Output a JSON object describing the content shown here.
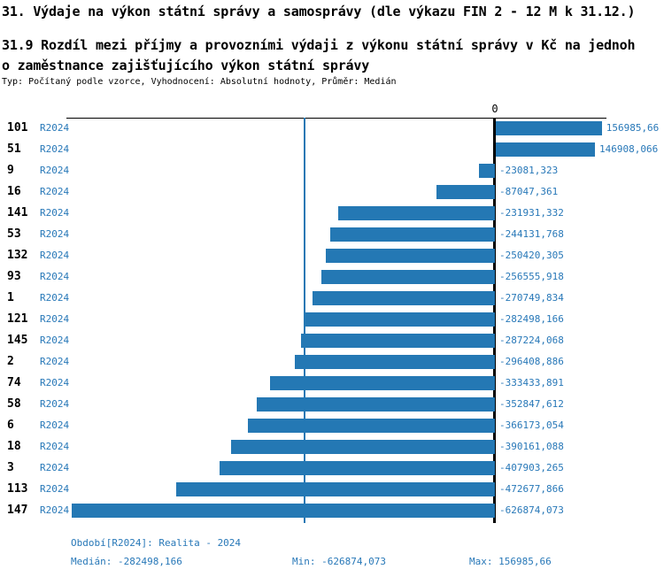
{
  "title": "31. Výdaje na výkon státní správy a samosprávy (dle výkazu FIN 2 - 12 M k 31.12.)",
  "subtitle_lines": [
    "31.9 Rozdíl mezi příjmy a provozními výdaji z výkonu státní správy v Kč na jednoh",
    "o zaměstnance zajišťujícího výkon státní správy"
  ],
  "meta_line": "Typ: Počítaný podle vzorce, Vyhodnocení: Absolutní hodnoty, Průměr: Medián",
  "axis": {
    "zero_label": "0"
  },
  "chart_data": {
    "type": "bar",
    "orientation": "horizontal",
    "title": "31.9 Rozdíl mezi příjmy a provozními výdaji z výkonu státní správy v Kč na jednoho zaměstnance zajišťujícího výkon státní správy",
    "xlim": [
      -637000,
      165000
    ],
    "grid": false,
    "legend": null,
    "median_value": -282498.166,
    "rows": [
      {
        "id": "101",
        "period": "R2024",
        "value": 156985.66,
        "display": "156985,66"
      },
      {
        "id": "51",
        "period": "R2024",
        "value": 146908.066,
        "display": "146908,066"
      },
      {
        "id": "9",
        "period": "R2024",
        "value": -23081.323,
        "display": "-23081,323"
      },
      {
        "id": "16",
        "period": "R2024",
        "value": -87047.361,
        "display": "-87047,361"
      },
      {
        "id": "141",
        "period": "R2024",
        "value": -231931.332,
        "display": "-231931,332"
      },
      {
        "id": "53",
        "period": "R2024",
        "value": -244131.768,
        "display": "-244131,768"
      },
      {
        "id": "132",
        "period": "R2024",
        "value": -250420.305,
        "display": "-250420,305"
      },
      {
        "id": "93",
        "period": "R2024",
        "value": -256555.918,
        "display": "-256555,918"
      },
      {
        "id": "1",
        "period": "R2024",
        "value": -270749.834,
        "display": "-270749,834"
      },
      {
        "id": "121",
        "period": "R2024",
        "value": -282498.166,
        "display": "-282498,166"
      },
      {
        "id": "145",
        "period": "R2024",
        "value": -287224.068,
        "display": "-287224,068"
      },
      {
        "id": "2",
        "period": "R2024",
        "value": -296408.886,
        "display": "-296408,886"
      },
      {
        "id": "74",
        "period": "R2024",
        "value": -333433.891,
        "display": "-333433,891"
      },
      {
        "id": "58",
        "period": "R2024",
        "value": -352847.612,
        "display": "-352847,612"
      },
      {
        "id": "6",
        "period": "R2024",
        "value": -366173.054,
        "display": "-366173,054"
      },
      {
        "id": "18",
        "period": "R2024",
        "value": -390161.088,
        "display": "-390161,088"
      },
      {
        "id": "3",
        "period": "R2024",
        "value": -407903.265,
        "display": "-407903,265"
      },
      {
        "id": "113",
        "period": "R2024",
        "value": -472677.866,
        "display": "-472677,866"
      },
      {
        "id": "147",
        "period": "R2024",
        "value": -626874.073,
        "display": "-626874,073"
      }
    ]
  },
  "footer": {
    "period": "Období[R2024]: Realita - 2024",
    "median": "Medián: -282498,166",
    "min": "Min: -626874,073",
    "max": "Max: 156985,66"
  },
  "colors": {
    "bar": "#2478b4",
    "accent_text": "#2878b8",
    "axis": "#000000"
  }
}
